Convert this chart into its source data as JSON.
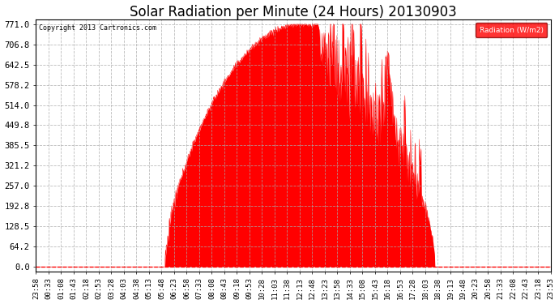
{
  "title": "Solar Radiation per Minute (24 Hours) 20130903",
  "copyright_text": "Copyright 2013 Cartronics.com",
  "ylabel": "Radiation (W/m2)",
  "y_ticks": [
    0.0,
    64.2,
    128.5,
    192.8,
    257.0,
    321.2,
    385.5,
    449.8,
    514.0,
    578.2,
    642.5,
    706.8,
    771.0
  ],
  "ymax": 771.0,
  "fill_color": "#FF0000",
  "line_color": "#FF0000",
  "background_color": "#FFFFFF",
  "grid_color": "#AAAAAA",
  "legend_box_color": "#FF0000",
  "legend_text": "Radiation (W/m2)",
  "title_fontsize": 12,
  "axis_fontsize": 7.5,
  "x_tick_labels": [
    "23:58",
    "00:33",
    "01:08",
    "01:43",
    "02:18",
    "02:53",
    "03:28",
    "04:03",
    "04:38",
    "05:13",
    "05:48",
    "06:23",
    "06:58",
    "07:33",
    "08:08",
    "08:43",
    "09:18",
    "09:53",
    "10:28",
    "11:03",
    "11:38",
    "12:13",
    "12:48",
    "13:23",
    "13:58",
    "14:33",
    "15:08",
    "15:43",
    "16:18",
    "16:53",
    "17:28",
    "18:03",
    "18:38",
    "19:13",
    "19:48",
    "20:23",
    "20:58",
    "21:33",
    "22:08",
    "22:43",
    "23:18",
    "23:53"
  ],
  "num_minutes": 1440,
  "sunrise_minute": 360,
  "sunset_minute": 1115,
  "peak_minute": 740,
  "peak_value": 771.0
}
